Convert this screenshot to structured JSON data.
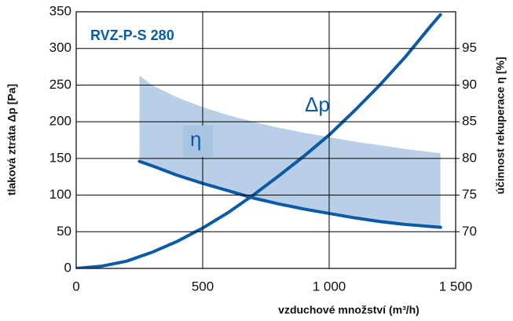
{
  "chart_data": {
    "type": "line",
    "title": "RVZ-P-S 280",
    "xlabel": "vzduchové množství (m³/h)",
    "ylabel": "tlaková ztráta Δp [Pa]",
    "y2label": "účinnost rekuperace η [%]",
    "xlim": [
      0,
      1500
    ],
    "xticks": [
      0,
      500,
      {
        "value": 1000,
        "label": "1 000"
      },
      {
        "value": 1500,
        "label": "1 500"
      }
    ],
    "ylim": [
      0,
      350
    ],
    "yticks": [
      0,
      50,
      100,
      150,
      200,
      250,
      300,
      350
    ],
    "y2lim": [
      65,
      100
    ],
    "y2ticks": [
      70,
      75,
      80,
      85,
      90,
      95
    ],
    "grid": true,
    "series": [
      {
        "name": "Δp",
        "color": "#0b5aa6",
        "axis": "y",
        "x": [
          0,
          100,
          200,
          300,
          400,
          500,
          600,
          700,
          800,
          900,
          1000,
          1100,
          1200,
          1300,
          1400,
          1440
        ],
        "values": [
          0,
          3,
          10,
          22,
          37,
          55,
          76,
          100,
          126,
          153,
          182,
          215,
          250,
          288,
          330,
          346
        ]
      },
      {
        "name": "η",
        "color": "#0b5aa6",
        "axis": "y2",
        "x": [
          250,
          300,
          400,
          500,
          600,
          700,
          800,
          900,
          1000,
          1100,
          1200,
          1300,
          1440
        ],
        "values": [
          79.6,
          79.0,
          77.7,
          76.6,
          75.6,
          74.6,
          73.8,
          73.1,
          72.5,
          71.9,
          71.4,
          71.0,
          70.6
        ]
      },
      {
        "type": "area",
        "color": "#b9cfe7",
        "axis": "y2",
        "x": [
          250,
          300,
          400,
          500,
          600,
          700,
          800,
          900,
          1000,
          1100,
          1200,
          1300,
          1440
        ],
        "values": [
          91.3,
          90.0,
          88.3,
          87.0,
          85.9,
          85.0,
          84.2,
          83.5,
          82.9,
          82.3,
          81.8,
          81.3,
          80.7
        ]
      }
    ]
  }
}
